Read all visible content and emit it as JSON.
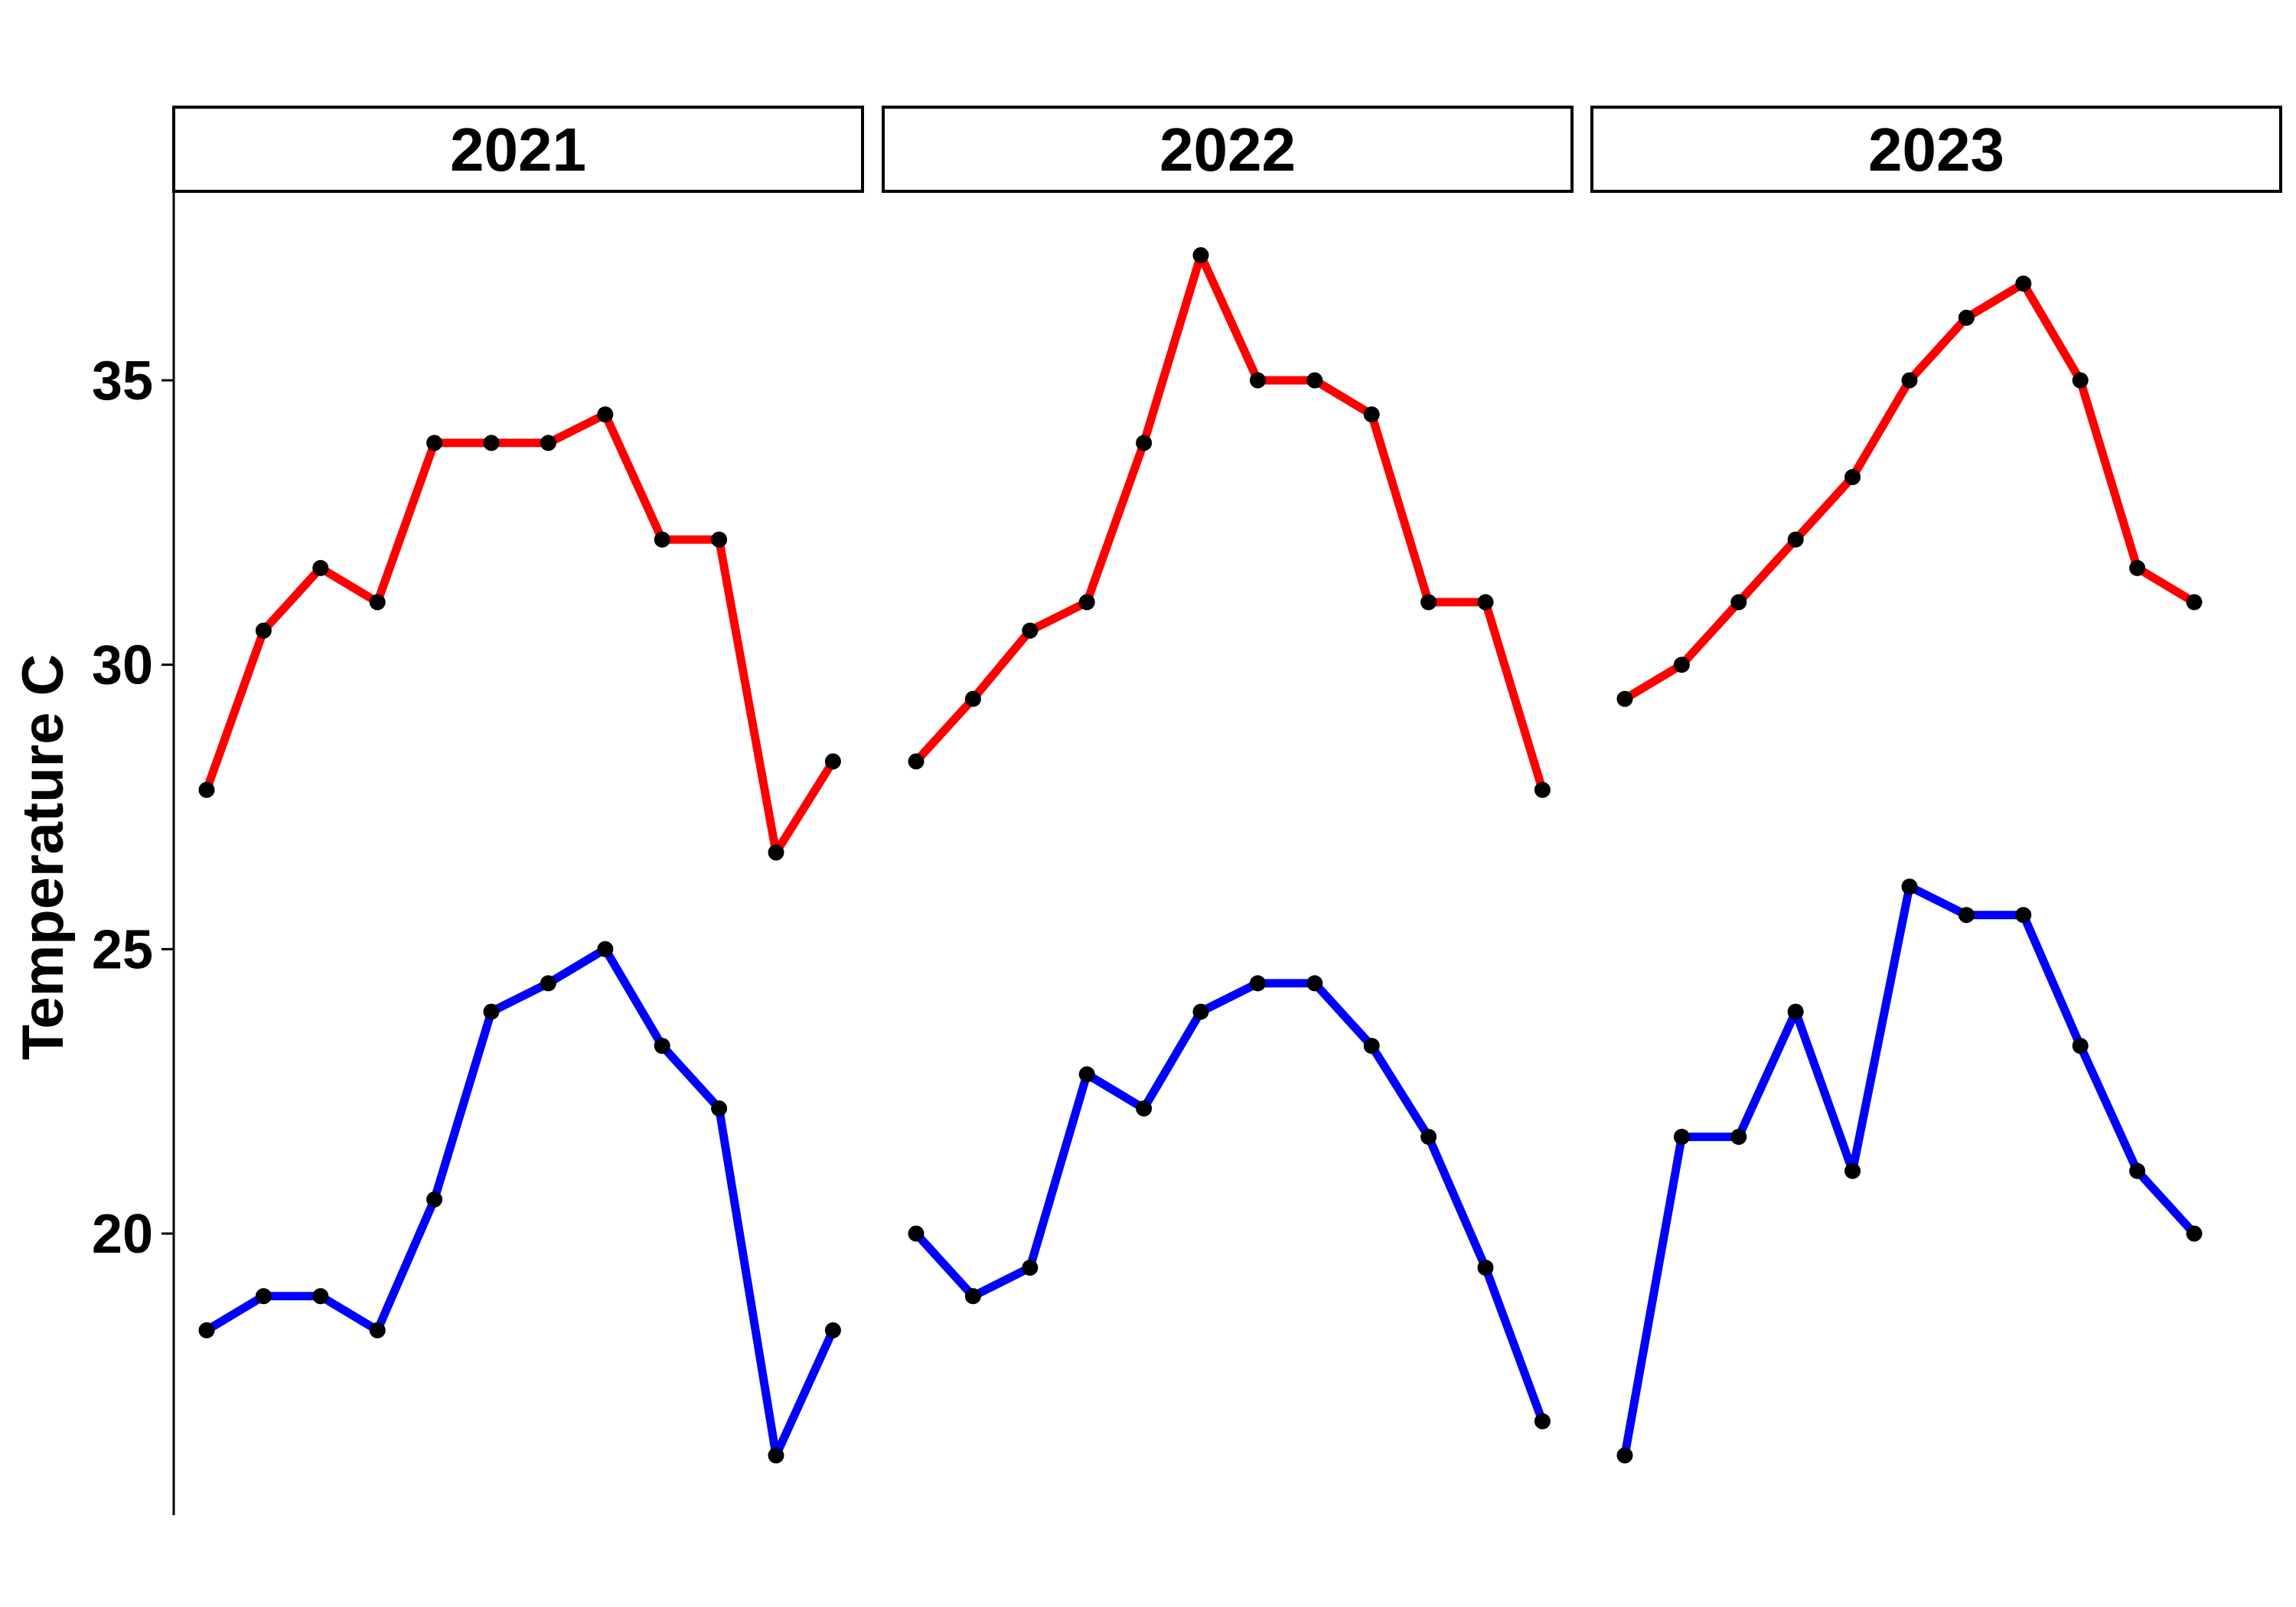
{
  "chart_data": {
    "type": "line",
    "title": "",
    "xlabel": "",
    "ylabel": "Temperature C",
    "ylim": [
      15.5,
      38
    ],
    "yticks": [
      20,
      25,
      30,
      35
    ],
    "grid": false,
    "legend": "none",
    "x": [
      1,
      2,
      3,
      4,
      5,
      6,
      7,
      8,
      9,
      10,
      11,
      12
    ],
    "panels": [
      {
        "label": "2021",
        "series": [
          {
            "color": "#ff0000",
            "values": [
              27.8,
              30.6,
              31.7,
              31.1,
              33.9,
              33.9,
              33.9,
              34.4,
              32.2,
              32.2,
              26.7,
              28.3
            ]
          },
          {
            "color": "#0000ff",
            "values": [
              18.3,
              18.9,
              18.9,
              18.3,
              20.6,
              23.9,
              24.4,
              25.0,
              23.3,
              22.2,
              16.1,
              18.3
            ]
          }
        ]
      },
      {
        "label": "2022",
        "series": [
          {
            "color": "#ff0000",
            "values": [
              28.3,
              29.4,
              30.6,
              31.1,
              33.9,
              37.2,
              35.0,
              35.0,
              34.4,
              31.1,
              31.1,
              27.8
            ]
          },
          {
            "color": "#0000ff",
            "values": [
              20.0,
              18.9,
              19.4,
              22.8,
              22.2,
              23.9,
              24.4,
              24.4,
              23.3,
              21.7,
              19.4,
              16.7
            ]
          }
        ]
      },
      {
        "label": "2023",
        "series": [
          {
            "color": "#ff0000",
            "values": [
              29.4,
              30.0,
              31.1,
              32.2,
              33.3,
              35.0,
              36.1,
              36.7,
              35.0,
              31.7,
              31.1
            ]
          },
          {
            "color": "#0000ff",
            "values": [
              16.1,
              21.7,
              21.7,
              23.9,
              21.1,
              26.1,
              25.6,
              25.6,
              23.3,
              21.1,
              20.0
            ]
          }
        ]
      }
    ],
    "colors": {
      "high": "#ff0000",
      "low": "#0000ff",
      "points": "#000000"
    }
  }
}
